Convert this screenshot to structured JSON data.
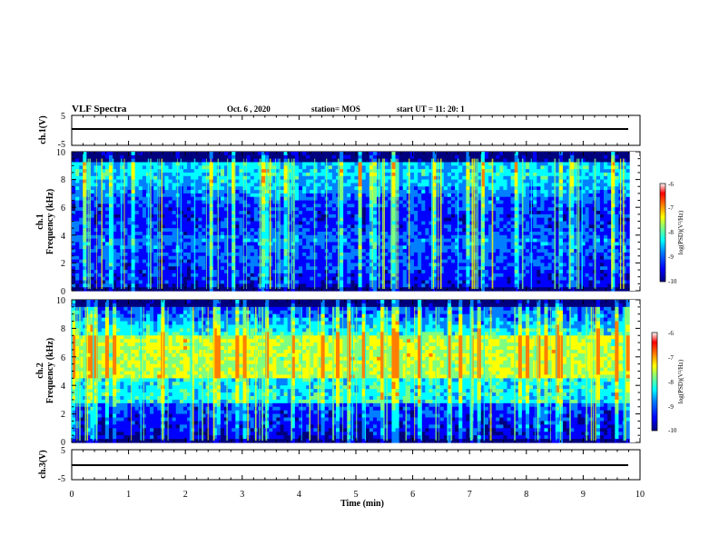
{
  "header": {
    "title": "VLF Spectra",
    "date": "Oct. 6 , 2020",
    "station": "station= MOS",
    "start": "start  UT =   11: 20: 1"
  },
  "chart_data": {
    "type": "heatmap",
    "xlabel": "Time (min)",
    "xlim": [
      0,
      10
    ],
    "x_ticks": [
      "0",
      "1",
      "2",
      "3",
      "4",
      "5",
      "6",
      "7",
      "8",
      "9",
      "10"
    ],
    "panels": [
      {
        "ylabel": "ch.1(V)",
        "ylim": [
          -5,
          5
        ],
        "y_ticks": [
          "5",
          "-5"
        ],
        "trace_value": 0
      },
      {
        "ylabel": "ch.1 Frequency (kHz)",
        "ylabel_line1": "ch.1",
        "ylabel_line2": "Frequency (kHz)",
        "ylim": [
          0,
          10
        ],
        "y_ticks": [
          "0",
          "2",
          "4",
          "6",
          "8",
          "10"
        ],
        "colorbar": {
          "label": "log(PSD)(V²/Hz)",
          "range": [
            -10,
            -6
          ],
          "ticks": [
            "-6",
            "-7",
            "-8",
            "-9",
            "-10"
          ]
        }
      },
      {
        "ylabel": "ch.2 Frequency (kHz)",
        "ylabel_line1": "ch.2",
        "ylabel_line2": "Frequency (kHz)",
        "ylim": [
          0,
          10
        ],
        "y_ticks": [
          "0",
          "2",
          "4",
          "6",
          "8",
          "10"
        ],
        "colorbar": {
          "label": "log(PSD)(V²/Hz)",
          "range": [
            -10,
            -6
          ],
          "ticks": [
            "-6",
            "-7",
            "-8",
            "-9",
            "-10"
          ]
        }
      },
      {
        "ylabel": "ch.3(V)",
        "ylim": [
          -5,
          5
        ],
        "y_ticks": [
          "5",
          "-5"
        ],
        "trace_value": 0
      }
    ],
    "data_end_min": 9.82,
    "colormap": [
      "#00007f",
      "#0000ff",
      "#007fff",
      "#00ffff",
      "#7fff7f",
      "#ffff00",
      "#ff7f00",
      "#ff0000",
      "#ffffff"
    ]
  }
}
